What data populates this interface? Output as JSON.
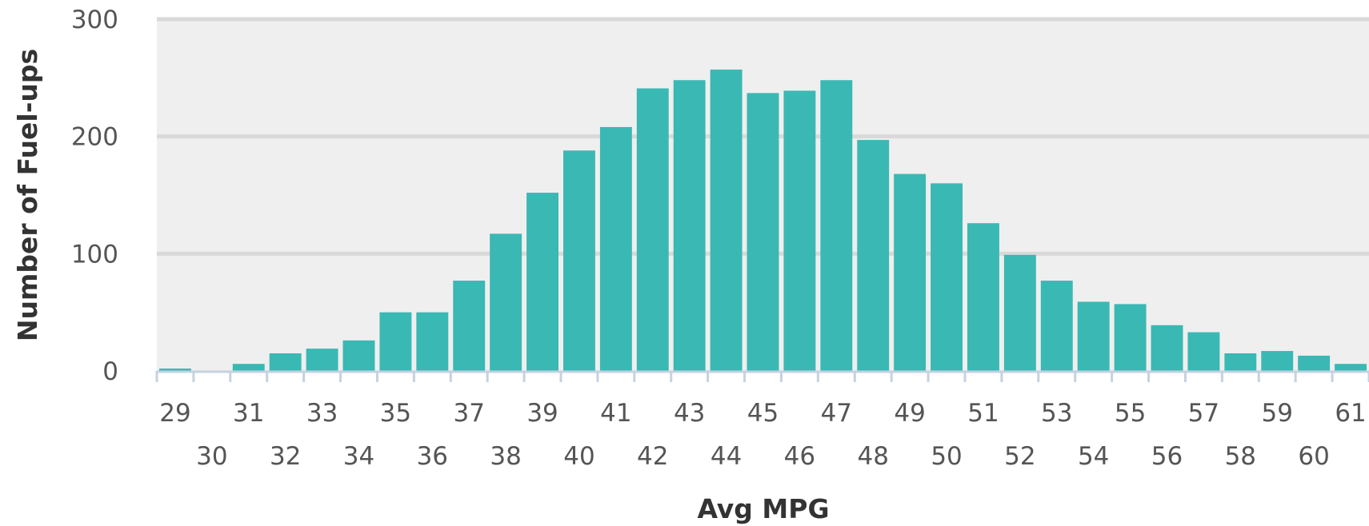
{
  "chart_data": {
    "type": "bar",
    "title": "",
    "xlabel": "Avg MPG",
    "ylabel": "Number of Fuel-ups",
    "ylim": [
      0,
      300
    ],
    "yticks": [
      0,
      100,
      200,
      300
    ],
    "grid": true,
    "legend": "none",
    "colors": {
      "bar": "#3ab8b4",
      "plot_background": "#efefef",
      "gridline": "#d9d9d9",
      "axis": "#c5d2e0",
      "tick_label": "#555555",
      "axis_title": "#333333"
    },
    "categories": [
      "29",
      "30",
      "31",
      "32",
      "33",
      "34",
      "35",
      "36",
      "37",
      "38",
      "39",
      "40",
      "41",
      "42",
      "43",
      "44",
      "45",
      "46",
      "47",
      "48",
      "49",
      "50",
      "51",
      "52",
      "53",
      "54",
      "55",
      "56",
      "57",
      "58",
      "59",
      "60",
      "61"
    ],
    "values": [
      2,
      0,
      6,
      15,
      19,
      26,
      50,
      50,
      77,
      117,
      152,
      188,
      208,
      241,
      248,
      257,
      237,
      239,
      248,
      197,
      168,
      160,
      126,
      99,
      77,
      59,
      57,
      39,
      33,
      15,
      17,
      13,
      6
    ]
  }
}
